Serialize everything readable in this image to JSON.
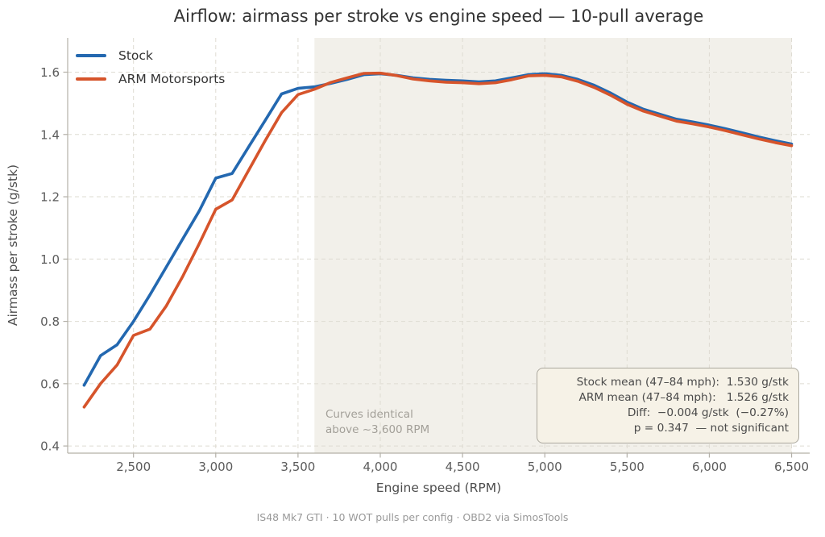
{
  "title": "Airflow: airmass per stroke vs engine speed — 10-pull average",
  "footer": "IS48 Mk7 GTI · 10 WOT pulls per config · OBD2 via SimosTools",
  "annotation": {
    "line1": "Curves identical",
    "line2": "above ~3,600 RPM"
  },
  "stats_box": {
    "lines": [
      "Stock mean (47–84 mph):  1.530 g/stk",
      "ARM mean (47–84 mph):   1.526 g/stk",
      "Diff:  −0.004 g/stk  (−0.27%)",
      "p = 0.347  — not significant"
    ]
  },
  "colors": {
    "stock_line": "#2368b0",
    "arm_line": "#d6542b",
    "shaded_band": "#f2f0ea",
    "grid": "#dedbd2",
    "spine": "#b3b0a8",
    "tick_label": "#5c5c5c",
    "stats_box_bg": "#f6f2e7",
    "stats_box_border": "#aba89e"
  },
  "chart_data": {
    "type": "line",
    "title": "Airflow: airmass per stroke vs engine speed — 10-pull average",
    "xlabel": "Engine speed (RPM)",
    "ylabel": "Airmass per stroke (g/stk)",
    "grid": true,
    "legend_position": "upper left",
    "xlim": [
      2100,
      6610
    ],
    "ylim": [
      0.377,
      1.71
    ],
    "x_ticks": {
      "values": [
        2500,
        3000,
        3500,
        4000,
        4500,
        5000,
        5500,
        6000,
        6500
      ],
      "labels": [
        "2,500",
        "3,000",
        "3,500",
        "4,000",
        "4,500",
        "5,000",
        "5,500",
        "6,000",
        "6,500"
      ]
    },
    "y_ticks": {
      "values": [
        0.4,
        0.6,
        0.8,
        1.0,
        1.2,
        1.4,
        1.6
      ],
      "labels": [
        "0.4",
        "0.6",
        "0.8",
        "1.0",
        "1.2",
        "1.4",
        "1.6"
      ]
    },
    "shaded_band": {
      "from": 3600,
      "to": 6500,
      "color": "#f2f0ea",
      "note": "Curves identical above ~3,600 RPM"
    },
    "x": [
      2200,
      2300,
      2400,
      2500,
      2600,
      2700,
      2800,
      2900,
      3000,
      3100,
      3200,
      3300,
      3400,
      3500,
      3600,
      3700,
      3800,
      3900,
      4000,
      4100,
      4200,
      4300,
      4400,
      4500,
      4600,
      4700,
      4800,
      4900,
      5000,
      5100,
      5200,
      5300,
      5400,
      5500,
      5600,
      5700,
      5800,
      5900,
      6000,
      6100,
      6200,
      6300,
      6400,
      6500
    ],
    "series": [
      {
        "name": "Stock",
        "color": "#2368b0",
        "values": [
          0.595,
          0.69,
          0.725,
          0.8,
          0.885,
          0.975,
          1.065,
          1.155,
          1.26,
          1.275,
          1.36,
          1.445,
          1.53,
          1.548,
          1.553,
          1.564,
          1.577,
          1.592,
          1.595,
          1.59,
          1.582,
          1.577,
          1.574,
          1.572,
          1.569,
          1.572,
          1.582,
          1.592,
          1.595,
          1.59,
          1.577,
          1.558,
          1.533,
          1.504,
          1.481,
          1.465,
          1.449,
          1.44,
          1.43,
          1.418,
          1.405,
          1.392,
          1.38,
          1.369
        ]
      },
      {
        "name": "ARM Motorsports",
        "color": "#d6542b",
        "values": [
          0.525,
          0.6,
          0.66,
          0.755,
          0.775,
          0.85,
          0.945,
          1.05,
          1.16,
          1.19,
          1.285,
          1.38,
          1.47,
          1.528,
          1.545,
          1.567,
          1.582,
          1.596,
          1.597,
          1.589,
          1.578,
          1.572,
          1.568,
          1.566,
          1.563,
          1.566,
          1.576,
          1.588,
          1.59,
          1.585,
          1.571,
          1.551,
          1.526,
          1.497,
          1.475,
          1.459,
          1.443,
          1.434,
          1.424,
          1.412,
          1.399,
          1.386,
          1.374,
          1.364
        ]
      }
    ]
  }
}
